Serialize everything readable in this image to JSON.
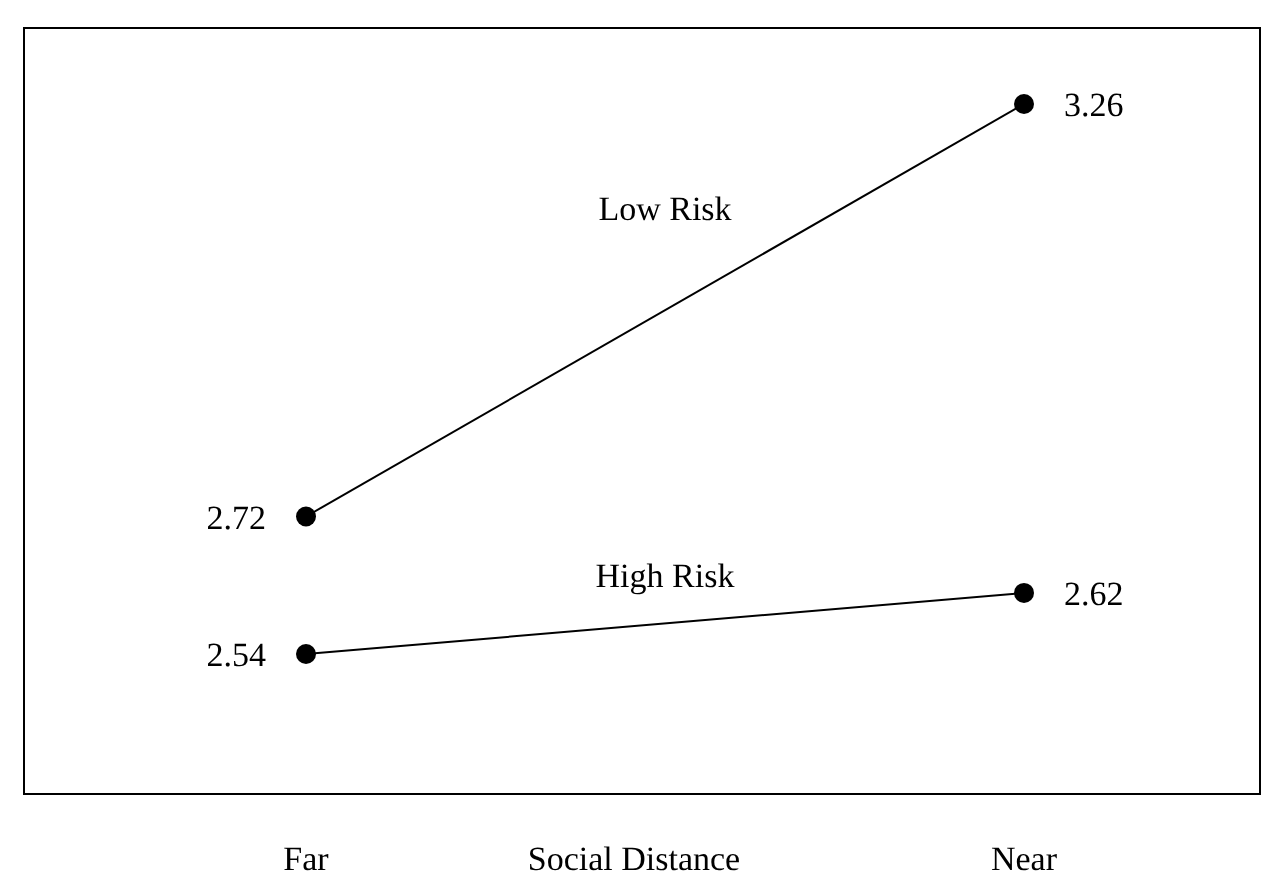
{
  "chart_data": {
    "type": "line",
    "categories": [
      "Far",
      "Near"
    ],
    "xlabel": "Social Distance",
    "series": [
      {
        "name": "Low Risk",
        "color": "#000000",
        "values": [
          2.72,
          3.26
        ]
      },
      {
        "name": "High Risk",
        "color": "#000000",
        "values": [
          2.54,
          2.62
        ]
      }
    ],
    "data_labels": true,
    "marker": "circle",
    "line_style": "solid"
  }
}
